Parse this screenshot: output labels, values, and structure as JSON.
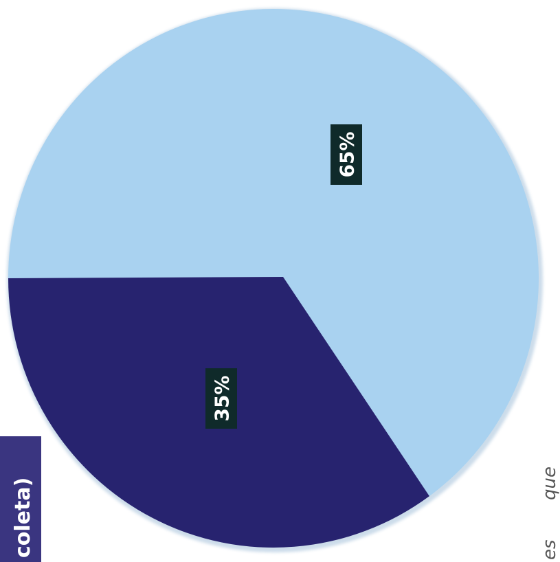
{
  "chart_data": {
    "type": "pie",
    "slices": [
      {
        "label": "65%",
        "value": 65,
        "color": "#a9d2f0"
      },
      {
        "label": "35%",
        "value": 35,
        "color": "#27236f"
      }
    ]
  },
  "side_tab": {
    "text": "coleta)",
    "color": "#3a3580"
  },
  "side_text": {
    "word1": "que",
    "word2": "es"
  }
}
